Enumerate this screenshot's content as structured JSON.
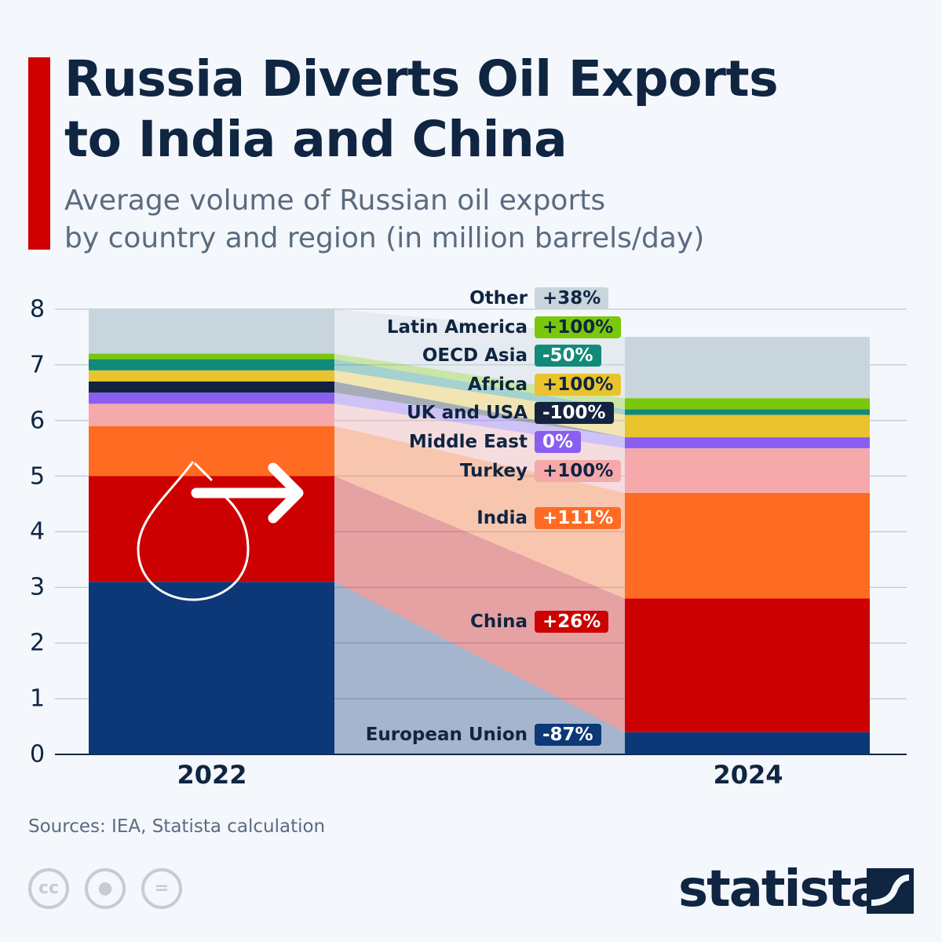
{
  "header": {
    "title_line1": "Russia Diverts Oil Exports",
    "title_line2": "to India and China",
    "subtitle_line1": "Average volume of Russian oil exports",
    "subtitle_line2": "by country and region (in million barrels/day)"
  },
  "chart_data": {
    "type": "bar",
    "stacked": true,
    "categories": [
      "2022",
      "2024"
    ],
    "ylim": [
      0,
      8
    ],
    "yticks": [
      "0",
      "1",
      "2",
      "3",
      "4",
      "5",
      "6",
      "7",
      "8"
    ],
    "grid": true,
    "series": [
      {
        "name": "European Union",
        "values": [
          3.1,
          0.4
        ],
        "change": "-87%",
        "color": "#0d3878",
        "badge_text": "#ffffff"
      },
      {
        "name": "China",
        "values": [
          1.9,
          2.4
        ],
        "change": "+26%",
        "color": "#cc0000",
        "badge_text": "#ffffff"
      },
      {
        "name": "India",
        "values": [
          0.9,
          1.9
        ],
        "change": "+111%",
        "color": "#ff6b22",
        "badge_text": "#ffffff"
      },
      {
        "name": "Turkey",
        "values": [
          0.4,
          0.8
        ],
        "change": "+100%",
        "color": "#f5a9ab",
        "badge_text": "#0f2541"
      },
      {
        "name": "Middle East",
        "values": [
          0.2,
          0.2
        ],
        "change": "0%",
        "color": "#8a5ff0",
        "badge_text": "#ffffff"
      },
      {
        "name": "UK and USA",
        "values": [
          0.2,
          0.0
        ],
        "change": "-100%",
        "color": "#13233f",
        "badge_text": "#ffffff"
      },
      {
        "name": "Africa",
        "values": [
          0.2,
          0.4
        ],
        "change": "+100%",
        "color": "#e8c32e",
        "badge_text": "#0f2541"
      },
      {
        "name": "OECD Asia",
        "values": [
          0.2,
          0.1
        ],
        "change": "-50%",
        "color": "#128a7a",
        "badge_text": "#ffffff"
      },
      {
        "name": "Latin America",
        "values": [
          0.1,
          0.2
        ],
        "change": "+100%",
        "color": "#7ac70c",
        "badge_text": "#0f2541"
      },
      {
        "name": "Other",
        "values": [
          0.8,
          1.1
        ],
        "change": "+38%",
        "color": "#c8d5dd",
        "badge_text": "#0f2541"
      }
    ]
  },
  "footer": {
    "source": "Sources: IEA, Statista calculation",
    "logo": "statista",
    "cc_icons": [
      "cc-icon",
      "attribution-icon",
      "no-derivatives-icon"
    ],
    "cc_label": "cc",
    "eq_label": "="
  }
}
